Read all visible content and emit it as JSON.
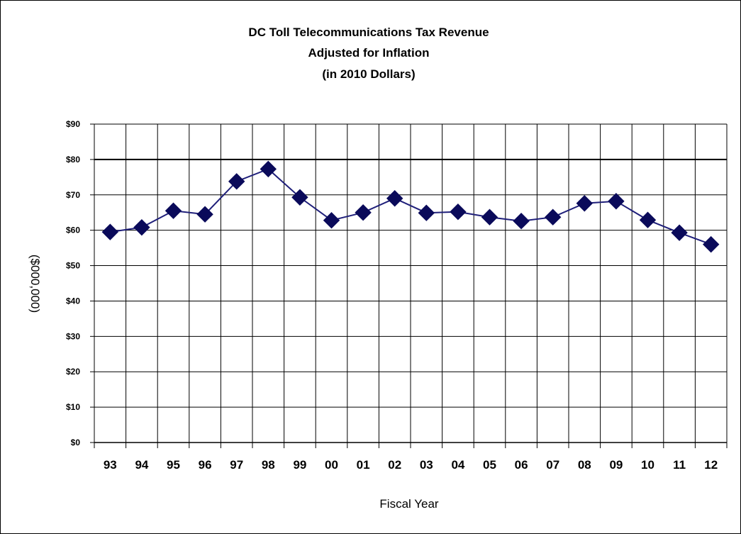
{
  "chart_data": {
    "type": "line",
    "title": [
      "DC  Toll Telecommunications Tax Revenue",
      "Adjusted for Inflation",
      "(in 2010 Dollars)"
    ],
    "xlabel": "Fiscal Year",
    "ylabel": "($000,000)",
    "categories": [
      "93",
      "94",
      "95",
      "96",
      "97",
      "98",
      "99",
      "00",
      "01",
      "02",
      "03",
      "04",
      "05",
      "06",
      "07",
      "08",
      "09",
      "10",
      "11",
      "12"
    ],
    "series": [
      {
        "values": [
          59.5,
          60.8,
          65.5,
          64.5,
          73.8,
          77.3,
          69.3,
          62.8,
          65.0,
          69.0,
          64.9,
          65.2,
          63.7,
          62.6,
          63.7,
          67.6,
          68.2,
          62.9,
          59.3,
          56.0
        ]
      }
    ],
    "ylim": [
      0,
      90
    ],
    "yticks": [
      0,
      10,
      20,
      30,
      40,
      50,
      60,
      70,
      80,
      90
    ],
    "ytick_labels": [
      "$0",
      "$10",
      "$20",
      "$30",
      "$40",
      "$50",
      "$60",
      "$70",
      "$80",
      "$90"
    ],
    "grid": true,
    "legend": "none",
    "colors": {
      "line": "#1f1f7a",
      "marker": "#0a0a5a",
      "grid": "#000000"
    }
  }
}
